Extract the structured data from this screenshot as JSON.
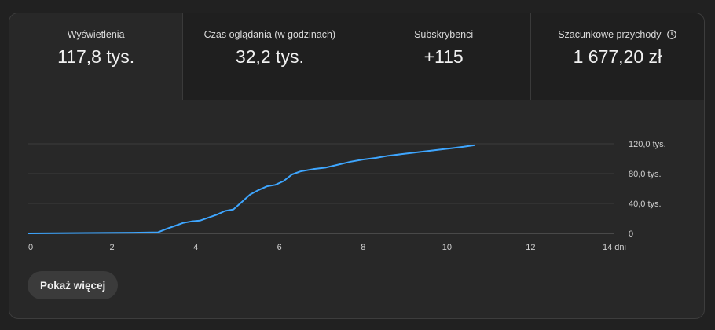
{
  "metrics": [
    {
      "label": "Wyświetlenia",
      "value": "117,8 tys."
    },
    {
      "label": "Czas oglądania (w godzinach)",
      "value": "32,2 tys."
    },
    {
      "label": "Subskrybenci",
      "value": "+115"
    },
    {
      "label": "Szacunkowe przychody",
      "value": "1 677,20 zł",
      "icon": "clock-icon"
    }
  ],
  "chart_data": {
    "type": "line",
    "x_ticks": [
      "0",
      "2",
      "4",
      "6",
      "8",
      "10",
      "12",
      "14 dni"
    ],
    "y_ticks": [
      "0",
      "40,0 tys.",
      "80,0 tys.",
      "120,0 tys."
    ],
    "xlim": [
      0,
      14
    ],
    "ylim": [
      0,
      120000
    ],
    "line_color": "#3ea6ff",
    "x": [
      0,
      2.5,
      3.1,
      3.3,
      3.5,
      3.7,
      3.9,
      4.1,
      4.3,
      4.5,
      4.7,
      4.9,
      5.1,
      5.3,
      5.5,
      5.7,
      5.9,
      6.1,
      6.3,
      6.5,
      6.8,
      7.1,
      7.4,
      7.7,
      8.0,
      8.3,
      8.6,
      8.9,
      9.2,
      9.5,
      9.8,
      10.1,
      10.4,
      10.65
    ],
    "y": [
      0,
      1000,
      1500,
      6000,
      10000,
      14000,
      16000,
      17000,
      21000,
      25000,
      30000,
      32000,
      42000,
      52000,
      58000,
      63000,
      65000,
      70000,
      79000,
      83000,
      86000,
      88000,
      92000,
      96000,
      99000,
      101000,
      104000,
      106000,
      108000,
      110000,
      112000,
      114000,
      116000,
      118000
    ]
  },
  "show_more_label": "Pokaż więcej"
}
